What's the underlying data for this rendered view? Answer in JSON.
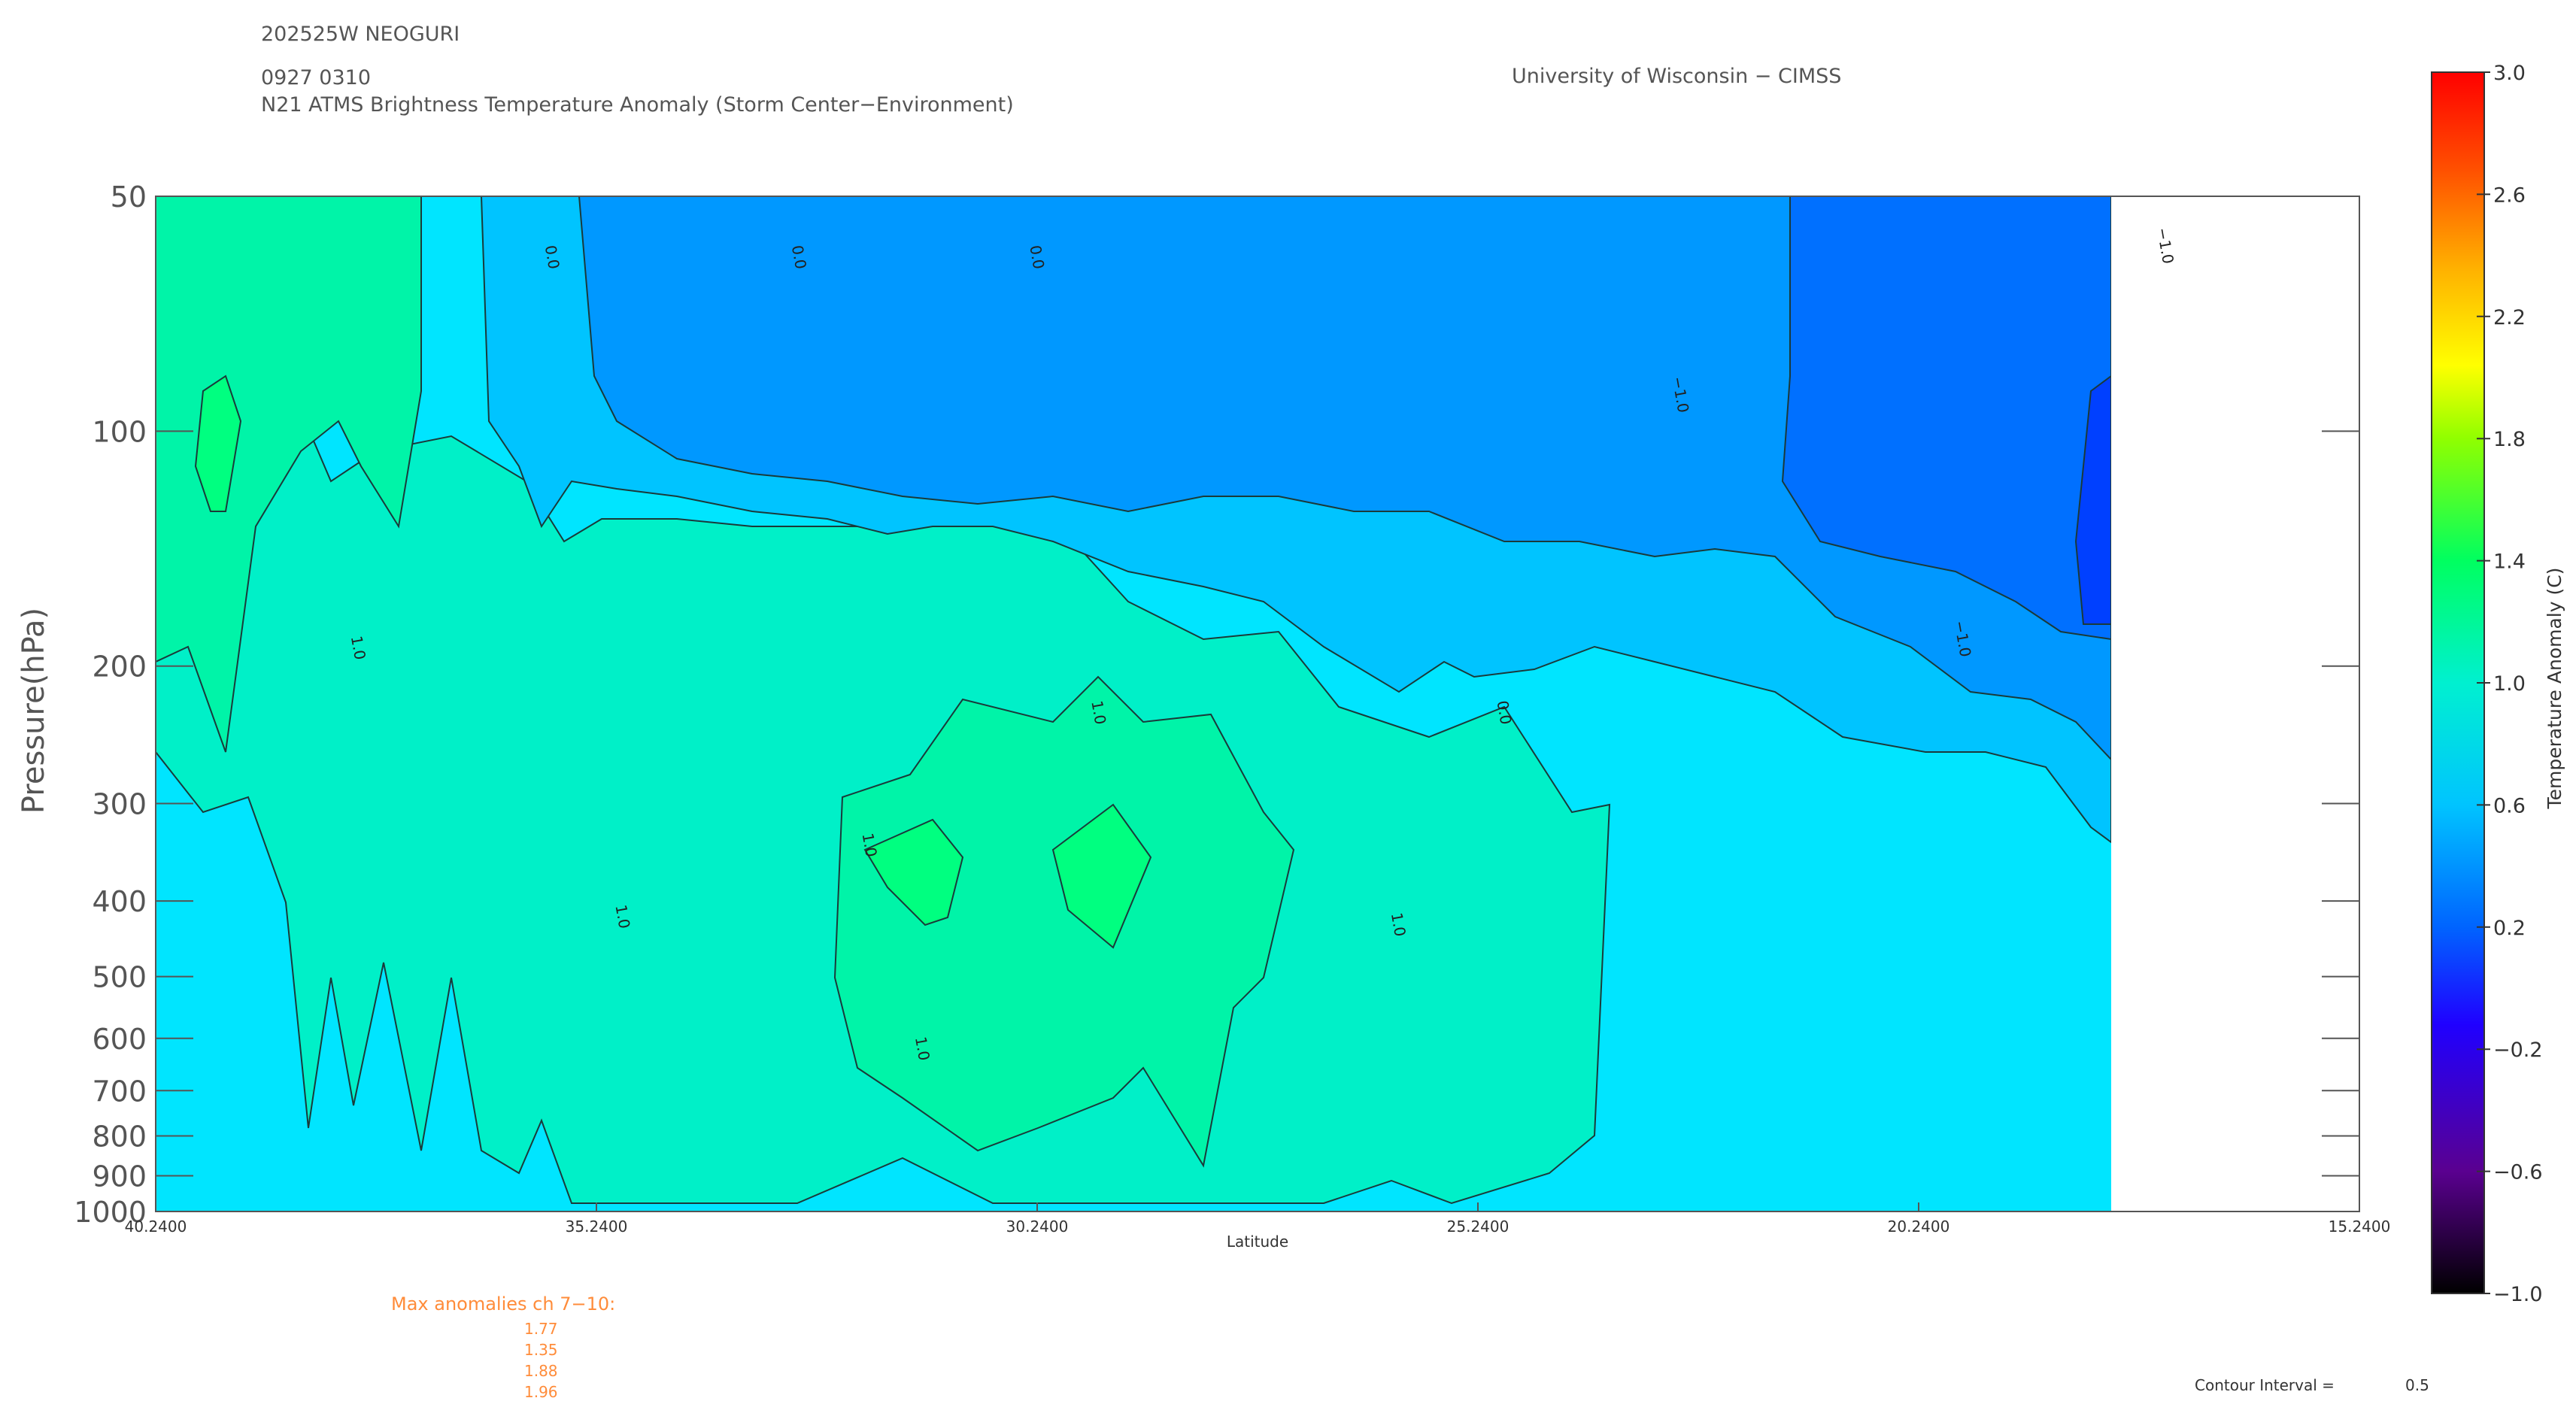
{
  "header": {
    "storm_id": "202525W NEOGURI",
    "datetime": "0927 0310",
    "product": "N21 ATMS Brightness Temperature Anomaly (Storm Center−Environment)",
    "institution": "University of Wisconsin − CIMSS"
  },
  "chart_data": {
    "type": "heatmap",
    "title": "N21 ATMS Brightness Temperature Anomaly (Storm Center−Environment)",
    "xlabel": "Latitude",
    "ylabel": "Pressure(hPa)",
    "x_axis_reversed": true,
    "xlim": [
      40.24,
      15.24
    ],
    "x_ticks": [
      40.24,
      35.24,
      30.24,
      25.24,
      20.24,
      15.24
    ],
    "x_tick_labels": [
      "40.2400",
      "35.2400",
      "30.2400",
      "25.2400",
      "20.2400",
      "15.2400"
    ],
    "y_scale": "log",
    "ylim": [
      1000,
      50
    ],
    "y_ticks": [
      50,
      100,
      200,
      300,
      400,
      500,
      600,
      700,
      800,
      900,
      1000
    ],
    "y_tick_labels": [
      "50",
      "100",
      "200",
      "300",
      "400",
      "500",
      "600",
      "700",
      "800",
      "900",
      "1000"
    ],
    "data_extent_lat": [
      40.24,
      18.0
    ],
    "colorbar": {
      "label": "Temperature Anomaly (C)",
      "range": [
        -1.0,
        3.0
      ],
      "ticks": [
        3.0,
        2.6,
        2.2,
        1.8,
        1.4,
        1.0,
        0.6,
        0.2,
        -0.2,
        -0.6,
        -1.0
      ],
      "tick_labels": [
        "3.0",
        "2.6",
        "2.2",
        "1.8",
        "1.4",
        "1.0",
        "0.6",
        "0.2",
        "−0.2",
        "−0.6",
        "−1.0"
      ]
    },
    "contour_interval": 0.5,
    "approx_anomaly_bands": [
      {
        "p_range": [
          50,
          140
        ],
        "lat_range": [
          40.24,
          35.5
        ],
        "value": 0.75
      },
      {
        "p_range": [
          50,
          140
        ],
        "lat_range": [
          35.5,
          18.0
        ],
        "value": 0.3
      },
      {
        "p_range": [
          140,
          300
        ],
        "lat_range": [
          40.24,
          18.0
        ],
        "value": 0.6
      },
      {
        "p_range": [
          300,
          700
        ],
        "lat_range": [
          32.5,
          25.5
        ],
        "value": 0.9
      },
      {
        "p_range": [
          700,
          1000
        ],
        "lat_range": [
          40.24,
          18.0
        ],
        "value": 0.55
      }
    ],
    "contour_labels": [
      {
        "text": "0.0",
        "lat": 35.8,
        "p": 60
      },
      {
        "text": "0.0",
        "lat": 33.0,
        "p": 60
      },
      {
        "text": "0.0",
        "lat": 30.3,
        "p": 60
      },
      {
        "text": "−1.0",
        "lat": 23.0,
        "p": 90
      },
      {
        "text": "−1.0",
        "lat": 17.5,
        "p": 58
      },
      {
        "text": "−1.0",
        "lat": 19.8,
        "p": 185
      },
      {
        "text": "1.0",
        "lat": 38.0,
        "p": 190
      },
      {
        "text": "1.0",
        "lat": 29.6,
        "p": 230
      },
      {
        "text": "1.0",
        "lat": 32.2,
        "p": 340
      },
      {
        "text": "1.0",
        "lat": 35.0,
        "p": 420
      },
      {
        "text": "1.0",
        "lat": 31.6,
        "p": 620
      },
      {
        "text": "1.0",
        "lat": 26.2,
        "p": 430
      },
      {
        "text": "0.0",
        "lat": 25.0,
        "p": 230
      }
    ]
  },
  "max_anomalies": {
    "title": "Max anomalies ch 7−10:",
    "values": [
      "1.77",
      "1.35",
      "1.88",
      "1.96"
    ]
  },
  "footer": {
    "contour_interval_label": "Contour Interval =",
    "contour_interval_value": "0.5"
  },
  "colors": {
    "cyan": "#00e5ff",
    "teal": "#00f0c8",
    "sea": "#00f4a8",
    "green": "#00ff80",
    "skyblue": "#00c4ff",
    "azure": "#0098ff",
    "blue": "#0070ff",
    "deepblue": "#0040ff",
    "anomaly_text": "#ff8c3a"
  }
}
